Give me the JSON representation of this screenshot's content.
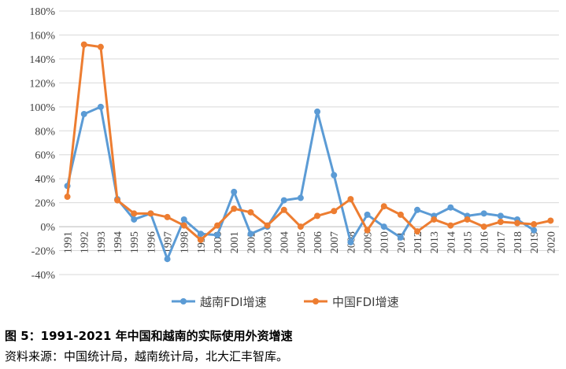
{
  "chart_data": {
    "type": "line",
    "title": "",
    "xlabel": "",
    "ylabel": "",
    "x": [
      "1991",
      "1992",
      "1993",
      "1994",
      "1995",
      "1996",
      "1997",
      "1998",
      "1999",
      "2000",
      "2001",
      "2002",
      "2003",
      "2004",
      "2005",
      "2006",
      "2007",
      "2008",
      "2009",
      "2010",
      "2011",
      "2012",
      "2013",
      "2014",
      "2015",
      "2016",
      "2017",
      "2018",
      "2019",
      "2020"
    ],
    "ylim": [
      -40,
      180
    ],
    "yticks": [
      "-40%",
      "-20%",
      "0%",
      "20%",
      "40%",
      "60%",
      "80%",
      "100%",
      "120%",
      "140%",
      "160%",
      "180%"
    ],
    "grid": true,
    "legend_position": "bottom",
    "series": [
      {
        "name": "越南FDI增速",
        "color": "#5B9BD5",
        "values": [
          34,
          94,
          100,
          23,
          6,
          11,
          -27,
          6,
          -6,
          -7,
          29,
          -6,
          0,
          22,
          24,
          96,
          43,
          -13,
          10,
          0,
          -9,
          14,
          9,
          16,
          9,
          11,
          9,
          6,
          -3,
          null
        ]
      },
      {
        "name": "中国FDI增速",
        "color": "#ED7D31",
        "values": [
          25,
          152,
          150,
          22,
          11,
          11,
          8,
          1,
          -11,
          1,
          15,
          12,
          1,
          14,
          0,
          9,
          13,
          23,
          -3,
          17,
          10,
          -4,
          6,
          1,
          6,
          0,
          4,
          3,
          2,
          5
        ]
      }
    ]
  },
  "captions": {
    "title": "图 5：1991-2021 年中国和越南的实际使用外资增速",
    "source": "资料来源：中国统计局，越南统计局，北大汇丰智库。"
  }
}
